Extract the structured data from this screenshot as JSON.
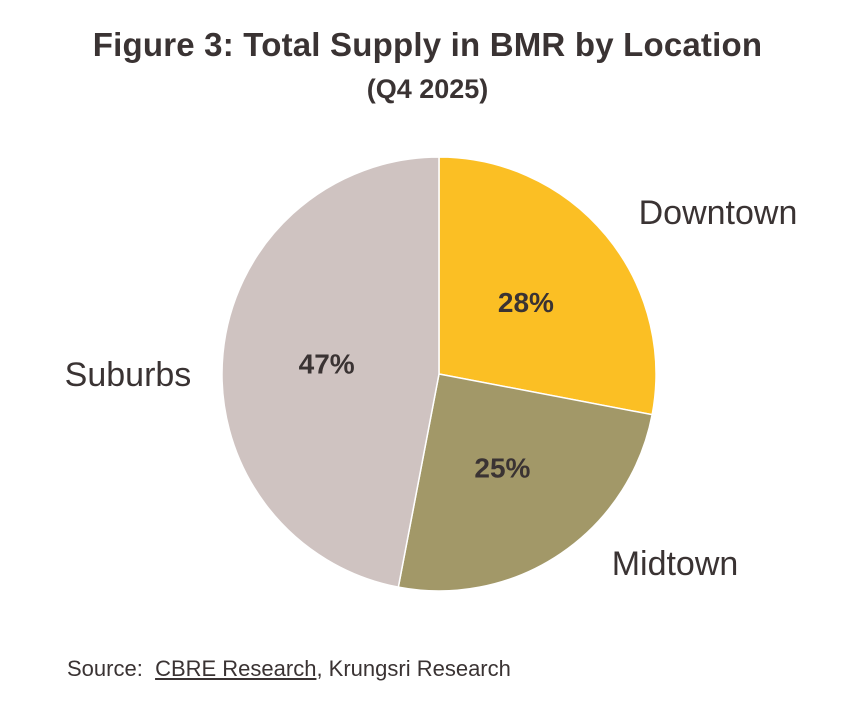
{
  "title": "Figure 3: Total Supply in BMR by Location",
  "subtitle": "(Q4 2025)",
  "chart_data": {
    "type": "pie",
    "title": "Figure 3: Total Supply in BMR by Location",
    "subtitle": "(Q4 2025)",
    "slices": [
      {
        "label": "Downtown",
        "value": 28,
        "value_label": "28%",
        "color": "#fbbf24"
      },
      {
        "label": "Midtown",
        "value": 25,
        "value_label": "25%",
        "color": "#a29868"
      },
      {
        "label": "Suburbs",
        "value": 47,
        "value_label": "47%",
        "color": "#cfc3c1"
      }
    ],
    "start_angle": "12 o'clock, clockwise",
    "legend": "none (category labels placed outside slices)"
  },
  "source": {
    "prefix": "Source:",
    "link_text": "CBRE Research",
    "rest": ", Krungsri Research"
  }
}
